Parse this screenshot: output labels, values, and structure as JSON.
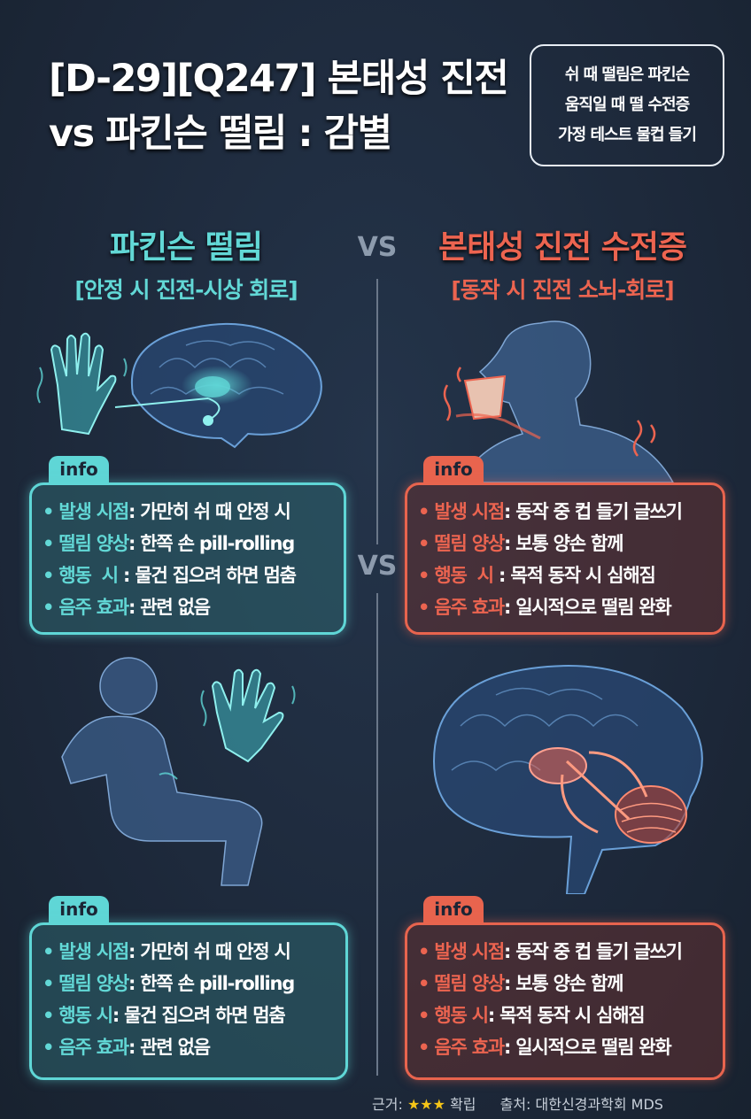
{
  "title": {
    "line1": "[D-29][Q247] 본태성 진전",
    "line2": "vs 파킨슨 떨림 : 감별"
  },
  "callout": [
    "쉬 때 떨림은 파킨슨",
    "움직일 때 떨 수전증",
    "가정 테스트 물컵 들기"
  ],
  "vs_label": "VS",
  "left": {
    "heading": "파킨슨 떨림",
    "subheading": "[안정 시 진전-시상 회로]",
    "color": "#5fd6d6",
    "info_boxes": [
      {
        "tab": "info",
        "rows": [
          {
            "key": "발생 시점",
            "value": ": 가만히 쉬 때 안정 시"
          },
          {
            "key": "떨림 양상",
            "value": ": 한쪽 손 pill-rolling"
          },
          {
            "key": "행동  시",
            "value": " : 물건 집으려 하면 멈춤"
          },
          {
            "key": "음주 효과",
            "value": ": 관련 없음"
          }
        ]
      },
      {
        "tab": "info",
        "rows": [
          {
            "key": "발생 시점",
            "value": ": 가만히 쉬 때 안정 시"
          },
          {
            "key": "떨림 양상",
            "value": ": 한쪽 손 pill-rolling"
          },
          {
            "key": "행동 시",
            "value": ": 물건 집으려 하면 멈춤"
          },
          {
            "key": "음주 효과",
            "value": ": 관련 없음"
          }
        ]
      }
    ]
  },
  "right": {
    "heading": "본태성 진전 수전증",
    "subheading": "[동작 시 진전 소뇌-회로]",
    "color": "#e8644e",
    "info_boxes": [
      {
        "tab": "info",
        "rows": [
          {
            "key": "발생 시점",
            "value": ": 동작 중 컵 들기 글쓰기"
          },
          {
            "key": "떨림 양상",
            "value": ": 보통 양손 함께"
          },
          {
            "key": "행동  시",
            "value": " : 목적 동작 시 심해짐"
          },
          {
            "key": "음주 효과",
            "value": ": 일시적으로 떨림 완화"
          }
        ]
      },
      {
        "tab": "info",
        "rows": [
          {
            "key": "발생 시점",
            "value": ": 동작 중 컵 들기 글쓰기"
          },
          {
            "key": "떨림 양상",
            "value": ": 보통 양손 함께"
          },
          {
            "key": "행동 시",
            "value": ": 목적 동작 시 심해짐"
          },
          {
            "key": "음주 효과",
            "value": ": 일시적으로 떨림 완화"
          }
        ]
      }
    ]
  },
  "footer": {
    "evidence_label": "근거:",
    "stars": "★★★",
    "evidence_level": "확립",
    "source": "출처: 대한신경과학회 MDS",
    "star_count": 3
  }
}
